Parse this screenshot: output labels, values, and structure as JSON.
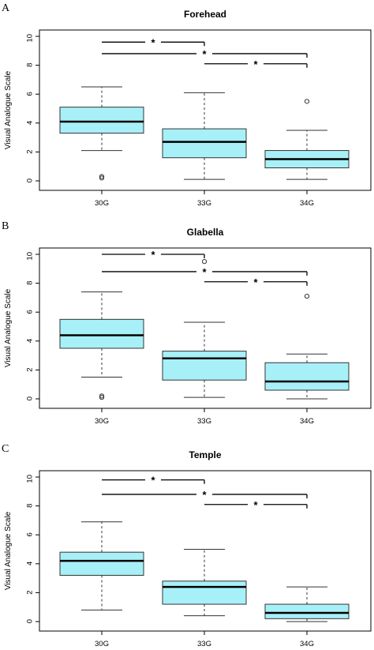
{
  "figure": {
    "background": "#ffffff",
    "box_fill": "#a8f0f8",
    "box_stroke": "#333333"
  },
  "chart_data": [
    {
      "panel_label": "A",
      "type": "box",
      "title": "Forehead",
      "ylabel": "Visual Analogue Scale",
      "xlabel": "",
      "categories": [
        "30G",
        "33G",
        "34G"
      ],
      "ylim": [
        0,
        10
      ],
      "yticks": [
        "0",
        "2",
        "4",
        "6",
        "8",
        "10"
      ],
      "grid": false,
      "boxes": [
        {
          "name": "30G",
          "whisker_low": 2.1,
          "q1": 3.3,
          "median": 4.1,
          "q3": 5.1,
          "whisker_high": 6.5,
          "outliers": [
            0.2,
            0.3
          ]
        },
        {
          "name": "33G",
          "whisker_low": 0.1,
          "q1": 1.6,
          "median": 2.7,
          "q3": 3.6,
          "whisker_high": 6.1,
          "outliers": []
        },
        {
          "name": "34G",
          "whisker_low": 0.1,
          "q1": 0.9,
          "median": 1.5,
          "q3": 2.1,
          "whisker_high": 3.5,
          "outliers": [
            5.5
          ]
        }
      ],
      "significance": [
        {
          "from": "30G",
          "to": "33G",
          "y": 9.6,
          "label": "*"
        },
        {
          "from": "30G",
          "to": "34G",
          "y": 8.8,
          "label": "*"
        },
        {
          "from": "33G",
          "to": "34G",
          "y": 8.1,
          "label": "*"
        }
      ]
    },
    {
      "panel_label": "B",
      "type": "box",
      "title": "Glabella",
      "ylabel": "Visual Analogue Scale",
      "xlabel": "",
      "categories": [
        "30G",
        "33G",
        "34G"
      ],
      "ylim": [
        0,
        10
      ],
      "yticks": [
        "0",
        "2",
        "4",
        "6",
        "8",
        "10"
      ],
      "grid": false,
      "boxes": [
        {
          "name": "30G",
          "whisker_low": 1.5,
          "q1": 3.5,
          "median": 4.4,
          "q3": 5.5,
          "whisker_high": 7.4,
          "outliers": [
            0.1,
            0.2
          ]
        },
        {
          "name": "33G",
          "whisker_low": 0.1,
          "q1": 1.3,
          "median": 2.8,
          "q3": 3.3,
          "whisker_high": 5.3,
          "outliers": [
            9.5
          ]
        },
        {
          "name": "34G",
          "whisker_low": 0.0,
          "q1": 0.6,
          "median": 1.2,
          "q3": 2.5,
          "whisker_high": 3.1,
          "outliers": [
            7.1
          ]
        }
      ],
      "significance": [
        {
          "from": "30G",
          "to": "33G",
          "y": 10.0,
          "label": "*"
        },
        {
          "from": "30G",
          "to": "34G",
          "y": 8.8,
          "label": "*"
        },
        {
          "from": "33G",
          "to": "34G",
          "y": 8.1,
          "label": "*"
        }
      ]
    },
    {
      "panel_label": "C",
      "type": "box",
      "title": "Temple",
      "ylabel": "Visual Analogue Scale",
      "xlabel": "",
      "categories": [
        "30G",
        "33G",
        "34G"
      ],
      "ylim": [
        0,
        10
      ],
      "yticks": [
        "0",
        "2",
        "4",
        "6",
        "8",
        "10"
      ],
      "grid": false,
      "boxes": [
        {
          "name": "30G",
          "whisker_low": 0.8,
          "q1": 3.2,
          "median": 4.2,
          "q3": 4.8,
          "whisker_high": 6.9,
          "outliers": []
        },
        {
          "name": "33G",
          "whisker_low": 0.4,
          "q1": 1.2,
          "median": 2.4,
          "q3": 2.8,
          "whisker_high": 5.0,
          "outliers": []
        },
        {
          "name": "34G",
          "whisker_low": 0.0,
          "q1": 0.2,
          "median": 0.6,
          "q3": 1.2,
          "whisker_high": 2.4,
          "outliers": []
        }
      ],
      "significance": [
        {
          "from": "30G",
          "to": "33G",
          "y": 9.8,
          "label": "*"
        },
        {
          "from": "30G",
          "to": "34G",
          "y": 8.8,
          "label": "*"
        },
        {
          "from": "33G",
          "to": "34G",
          "y": 8.1,
          "label": "*"
        }
      ]
    }
  ]
}
